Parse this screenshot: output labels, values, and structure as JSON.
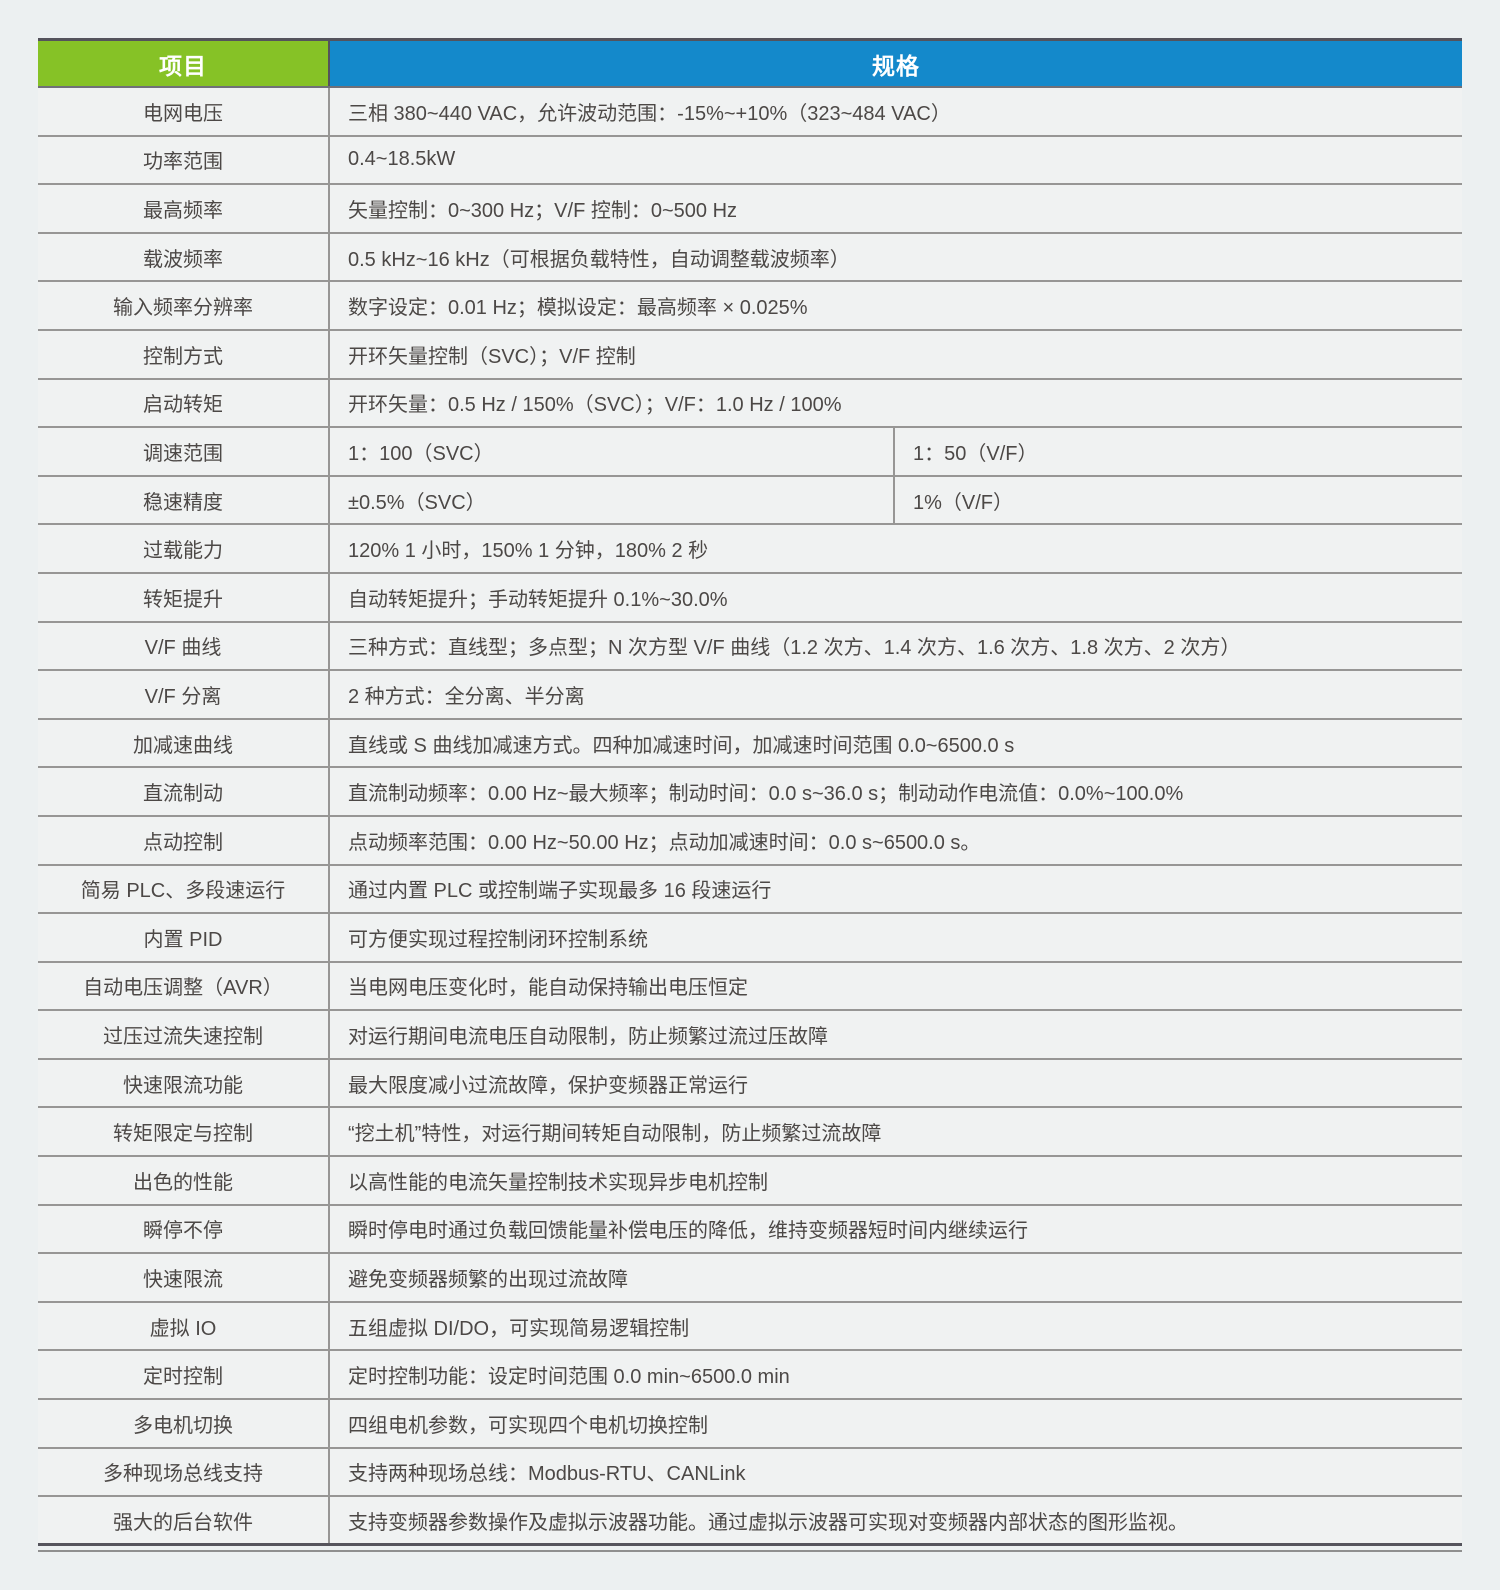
{
  "header": {
    "item_label": "项目",
    "spec_label": "规格"
  },
  "colors": {
    "item_header_bg": "#86c226",
    "spec_header_bg": "#1489cb",
    "header_text": "#ffffff",
    "row_bg": "#f0f2f2",
    "body_text": "#4c4846",
    "grid_line": "#979695",
    "dark_rule": "#54535c",
    "page_bg": "#ecf0f1"
  },
  "rows": [
    {
      "label": "电网电压",
      "specs": [
        "三相 380~440 VAC，允许波动范围：-15%~+10%（323~484 VAC）"
      ]
    },
    {
      "label": "功率范围",
      "specs": [
        "0.4~18.5kW"
      ]
    },
    {
      "label": "最高频率",
      "specs": [
        "矢量控制：0~300 Hz；V/F 控制：0~500 Hz"
      ]
    },
    {
      "label": "载波频率",
      "specs": [
        "0.5 kHz~16 kHz（可根据负载特性，自动调整载波频率）"
      ]
    },
    {
      "label": "输入频率分辨率",
      "specs": [
        "数字设定：0.01 Hz；模拟设定：最高频率 × 0.025%"
      ]
    },
    {
      "label": "控制方式",
      "specs": [
        "开环矢量控制（SVC）；V/F 控制"
      ]
    },
    {
      "label": "启动转矩",
      "specs": [
        "开环矢量：0.5 Hz / 150%（SVC）；V/F：1.0 Hz / 100%"
      ]
    },
    {
      "label": "调速范围",
      "specs": [
        "1：100（SVC）",
        "1：50（V/F）"
      ]
    },
    {
      "label": "稳速精度",
      "specs": [
        "±0.5%（SVC）",
        "1%（V/F）"
      ]
    },
    {
      "label": "过载能力",
      "specs": [
        "120% 1 小时，150% 1 分钟，180% 2 秒"
      ]
    },
    {
      "label": "转矩提升",
      "specs": [
        "自动转矩提升；手动转矩提升 0.1%~30.0%"
      ]
    },
    {
      "label": "V/F 曲线",
      "specs": [
        "三种方式：直线型；多点型；N 次方型 V/F 曲线（1.2 次方、1.4 次方、1.6 次方、1.8 次方、2 次方）"
      ]
    },
    {
      "label": "V/F 分离",
      "specs": [
        "2 种方式：全分离、半分离"
      ]
    },
    {
      "label": "加减速曲线",
      "specs": [
        "直线或 S 曲线加减速方式。四种加减速时间，加减速时间范围 0.0~6500.0 s"
      ]
    },
    {
      "label": "直流制动",
      "specs": [
        "直流制动频率：0.00 Hz~最大频率；制动时间：0.0 s~36.0 s；制动动作电流值：0.0%~100.0%"
      ]
    },
    {
      "label": "点动控制",
      "specs": [
        "点动频率范围：0.00 Hz~50.00 Hz；点动加减速时间：0.0 s~6500.0 s。"
      ]
    },
    {
      "label": "简易 PLC、多段速运行",
      "specs": [
        "通过内置 PLC 或控制端子实现最多 16 段速运行"
      ]
    },
    {
      "label": "内置 PID",
      "specs": [
        "可方便实现过程控制闭环控制系统"
      ]
    },
    {
      "label": "自动电压调整（AVR）",
      "specs": [
        "当电网电压变化时，能自动保持输出电压恒定"
      ]
    },
    {
      "label": "过压过流失速控制",
      "specs": [
        "对运行期间电流电压自动限制，防止频繁过流过压故障"
      ]
    },
    {
      "label": "快速限流功能",
      "specs": [
        "最大限度减小过流故障，保护变频器正常运行"
      ]
    },
    {
      "label": "转矩限定与控制",
      "specs": [
        "“挖土机”特性，对运行期间转矩自动限制，防止频繁过流故障"
      ]
    },
    {
      "label": "出色的性能",
      "specs": [
        "以高性能的电流矢量控制技术实现异步电机控制"
      ]
    },
    {
      "label": "瞬停不停",
      "specs": [
        "瞬时停电时通过负载回馈能量补偿电压的降低，维持变频器短时间内继续运行"
      ]
    },
    {
      "label": "快速限流",
      "specs": [
        "避免变频器频繁的出现过流故障"
      ]
    },
    {
      "label": "虚拟 IO",
      "specs": [
        "五组虚拟 DI/DO，可实现简易逻辑控制"
      ]
    },
    {
      "label": "定时控制",
      "specs": [
        "定时控制功能：设定时间范围 0.0 min~6500.0 min"
      ]
    },
    {
      "label": "多电机切换",
      "specs": [
        "四组电机参数，可实现四个电机切换控制"
      ]
    },
    {
      "label": "多种现场总线支持",
      "specs": [
        "支持两种现场总线：Modbus-RTU、CANLink"
      ]
    },
    {
      "label": "强大的后台软件",
      "specs": [
        "支持变频器参数操作及虚拟示波器功能。通过虚拟示波器可实现对变频器内部状态的图形监视。"
      ]
    }
  ]
}
